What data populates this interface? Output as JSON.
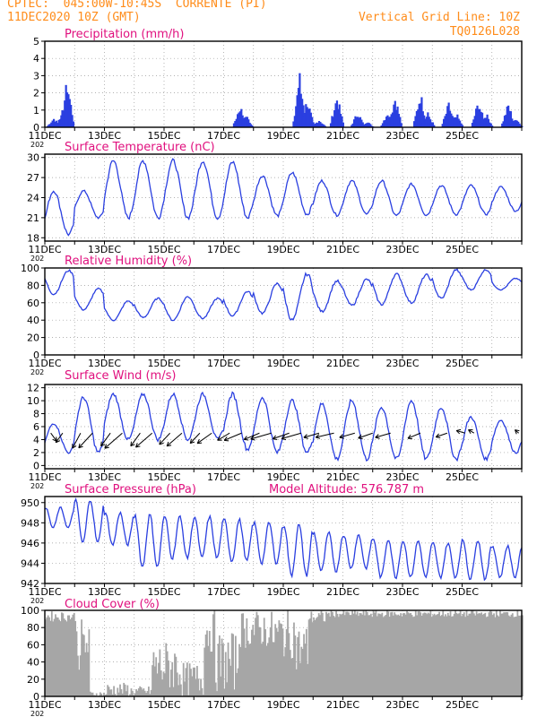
{
  "header": {
    "title": "CPTEC:  045:00W-10:45S  CORRENTE (PI)",
    "date": "11DEC2020 10Z (GMT)",
    "grid_note": "Vertical Grid Line: 10Z",
    "code": "TQ0126L028"
  },
  "x_axis": {
    "tick_labels": [
      "11DEC",
      "13DEC",
      "15DEC",
      "17DEC",
      "19DEC",
      "21DEC",
      "23DEC",
      "25DEC"
    ],
    "year_fragment": "202"
  },
  "colors": {
    "line": "#2a3fe0",
    "bar": "#2a3fe0",
    "cloud": "#a6a6a6",
    "title": "#e0107e",
    "header": "#ff8c1a",
    "grid": "#999999"
  },
  "chart_data": [
    {
      "type": "bar",
      "title": "Precipitation (mm/h)",
      "ylim": [
        0,
        5
      ],
      "yticks": [
        0,
        1,
        2,
        3,
        4,
        5
      ],
      "grid": true,
      "events": [
        {
          "day": 0.3,
          "peak": 0.6
        },
        {
          "day": 0.55,
          "peak": 0.8
        },
        {
          "day": 0.75,
          "peak": 3.0
        },
        {
          "day": 6.55,
          "peak": 1.4
        },
        {
          "day": 6.75,
          "peak": 0.8
        },
        {
          "day": 8.55,
          "peak": 3.2
        },
        {
          "day": 8.8,
          "peak": 1.8
        },
        {
          "day": 9.2,
          "peak": 0.5
        },
        {
          "day": 9.8,
          "peak": 2.0
        },
        {
          "day": 10.5,
          "peak": 1.0
        },
        {
          "day": 10.8,
          "peak": 0.4
        },
        {
          "day": 11.5,
          "peak": 1.0
        },
        {
          "day": 11.75,
          "peak": 2.0
        },
        {
          "day": 12.6,
          "peak": 2.2
        },
        {
          "day": 12.85,
          "peak": 0.9
        },
        {
          "day": 13.55,
          "peak": 1.5
        },
        {
          "day": 13.8,
          "peak": 0.9
        },
        {
          "day": 14.55,
          "peak": 1.7
        },
        {
          "day": 14.8,
          "peak": 0.9
        },
        {
          "day": 15.55,
          "peak": 1.5
        },
        {
          "day": 15.8,
          "peak": 0.6
        }
      ]
    },
    {
      "type": "line",
      "title": "Surface Temperature (nC)",
      "ylim": [
        17.5,
        30.5
      ],
      "yticks": [
        18,
        21,
        24,
        27,
        30
      ],
      "grid": true,
      "daily_max": [
        25.0,
        25.0,
        29.5,
        29.5,
        29.5,
        29.5,
        29.3,
        27.3,
        27.7,
        26.5,
        26.5,
        26.5,
        26.0,
        25.8,
        25.8,
        25.6
      ],
      "daily_min": [
        18.5,
        21.0,
        21.0,
        21.0,
        21.0,
        21.0,
        21.0,
        21.3,
        21.5,
        21.4,
        21.5,
        21.3,
        21.4,
        21.5,
        21.5,
        22.0
      ]
    },
    {
      "type": "line",
      "title": "Relative Humidity (%)",
      "ylim": [
        0,
        100
      ],
      "yticks": [
        0,
        20,
        40,
        60,
        80,
        100
      ],
      "grid": true,
      "daily_max": [
        97,
        76,
        62,
        65,
        67,
        65,
        73,
        82,
        93,
        85,
        87,
        93,
        92,
        98,
        98,
        88
      ],
      "daily_min": [
        70,
        52,
        40,
        43,
        40,
        42,
        45,
        48,
        40,
        50,
        57,
        58,
        60,
        65,
        75,
        75
      ]
    },
    {
      "type": "line",
      "title": "Surface Wind (m/s)",
      "ylim": [
        -0.5,
        12.5
      ],
      "yticks": [
        0,
        2,
        4,
        6,
        8,
        10,
        12
      ],
      "grid": true,
      "daily_max": [
        6.5,
        10.5,
        11.0,
        11.0,
        11.0,
        11.0,
        11.0,
        10.5,
        10.0,
        9.5,
        10.0,
        9.0,
        10.0,
        9.0,
        7.5,
        7.0
      ],
      "daily_min": [
        2.0,
        2.0,
        4.0,
        4.0,
        4.0,
        4.0,
        2.5,
        2.0,
        2.0,
        1.0,
        1.0,
        1.0,
        1.0,
        1.0,
        1.0,
        2.0
      ],
      "arrows": [
        {
          "day": 0.2,
          "dir": 160,
          "len": 1.4
        },
        {
          "day": 0.6,
          "dir": 200,
          "len": 1.6
        },
        {
          "day": 1.2,
          "dir": 195,
          "len": 2.5
        },
        {
          "day": 1.6,
          "dir": 205,
          "len": 2.6
        },
        {
          "day": 2.2,
          "dir": 200,
          "len": 2.2
        },
        {
          "day": 2.6,
          "dir": 210,
          "len": 2.8
        },
        {
          "day": 3.2,
          "dir": 200,
          "len": 2.2
        },
        {
          "day": 3.6,
          "dir": 210,
          "len": 2.6
        },
        {
          "day": 4.2,
          "dir": 205,
          "len": 2.0
        },
        {
          "day": 4.6,
          "dir": 210,
          "len": 2.4
        },
        {
          "day": 5.2,
          "dir": 205,
          "len": 1.8
        },
        {
          "day": 5.6,
          "dir": 215,
          "len": 2.0
        },
        {
          "day": 6.2,
          "dir": 220,
          "len": 1.5
        },
        {
          "day": 6.6,
          "dir": 230,
          "len": 1.8
        },
        {
          "day": 7.2,
          "dir": 230,
          "len": 1.6
        },
        {
          "day": 7.6,
          "dir": 240,
          "len": 1.9
        },
        {
          "day": 8.2,
          "dir": 235,
          "len": 1.6
        },
        {
          "day": 8.6,
          "dir": 240,
          "len": 1.8
        },
        {
          "day": 9.2,
          "dir": 240,
          "len": 1.4
        },
        {
          "day": 9.7,
          "dir": 245,
          "len": 1.6
        },
        {
          "day": 10.4,
          "dir": 240,
          "len": 1.4
        },
        {
          "day": 11.0,
          "dir": 235,
          "len": 1.4
        },
        {
          "day": 11.6,
          "dir": 240,
          "len": 1.4
        },
        {
          "day": 12.6,
          "dir": 230,
          "len": 1.3
        },
        {
          "day": 13.5,
          "dir": 235,
          "len": 1.1
        },
        {
          "day": 14.1,
          "dir": 300,
          "len": 0.8
        },
        {
          "day": 14.4,
          "dir": 320,
          "len": 0.7
        },
        {
          "day": 15.9,
          "dir": 330,
          "len": 0.6
        }
      ]
    },
    {
      "type": "line",
      "title": "Surface Pressure (hPa)",
      "annotation": "Model Altitude: 576.787  m",
      "ylim": [
        942,
        950.6
      ],
      "yticks": [
        942,
        944,
        946,
        948,
        950
      ],
      "grid": true,
      "daily_max": [
        949.5,
        950.3,
        949.0,
        948.8,
        948.6,
        948.6,
        948.3,
        948.0,
        947.8,
        947.0,
        946.8,
        946.4,
        946.2,
        946.0,
        946.3,
        945.7
      ],
      "daily_min": [
        947.5,
        946.0,
        945.8,
        943.6,
        944.5,
        944.5,
        944.2,
        944.0,
        942.8,
        943.2,
        943.5,
        942.6,
        942.6,
        942.6,
        942.4,
        942.6
      ]
    },
    {
      "type": "bar",
      "title": "Cloud Cover (%)",
      "ylim": [
        0,
        100
      ],
      "yticks": [
        0,
        20,
        40,
        60,
        80,
        100
      ],
      "grid": true,
      "segments": [
        {
          "start": 0.0,
          "end": 1.0,
          "base": 93,
          "var": 6
        },
        {
          "start": 1.0,
          "end": 1.5,
          "base": 60,
          "var": 30
        },
        {
          "start": 1.5,
          "end": 2.05,
          "base": 3,
          "var": 3
        },
        {
          "start": 2.05,
          "end": 2.8,
          "base": 8,
          "var": 8
        },
        {
          "start": 2.8,
          "end": 3.55,
          "base": 6,
          "var": 6
        },
        {
          "start": 3.55,
          "end": 4.5,
          "base": 35,
          "var": 30
        },
        {
          "start": 4.5,
          "end": 5.3,
          "base": 20,
          "var": 20
        },
        {
          "start": 5.3,
          "end": 5.7,
          "base": 75,
          "var": 25
        },
        {
          "start": 5.7,
          "end": 6.5,
          "base": 40,
          "var": 35
        },
        {
          "start": 6.5,
          "end": 7.5,
          "base": 78,
          "var": 22
        },
        {
          "start": 7.5,
          "end": 8.4,
          "base": 72,
          "var": 28
        },
        {
          "start": 8.4,
          "end": 8.8,
          "base": 55,
          "var": 30
        },
        {
          "start": 8.8,
          "end": 9.4,
          "base": 92,
          "var": 8
        },
        {
          "start": 9.4,
          "end": 16.0,
          "base": 96,
          "var": 4
        }
      ]
    }
  ]
}
